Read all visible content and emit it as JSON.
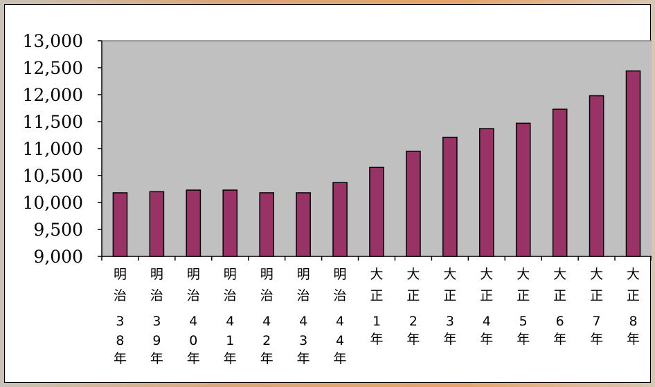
{
  "chart_data": {
    "type": "bar",
    "categories": [
      "明治38年",
      "明治39年",
      "明治40年",
      "明治41年",
      "明治42年",
      "明治43年",
      "明治44年",
      "大正1年",
      "大正2年",
      "大正3年",
      "大正4年",
      "大正5年",
      "大正6年",
      "大正7年",
      "大正8年"
    ],
    "category_lines": [
      [
        "明",
        "治",
        "3",
        "8",
        "年"
      ],
      [
        "明",
        "治",
        "3",
        "9",
        "年"
      ],
      [
        "明",
        "治",
        "4",
        "0",
        "年"
      ],
      [
        "明",
        "治",
        "4",
        "1",
        "年"
      ],
      [
        "明",
        "治",
        "4",
        "2",
        "年"
      ],
      [
        "明",
        "治",
        "4",
        "3",
        "年"
      ],
      [
        "明",
        "治",
        "4",
        "4",
        "年"
      ],
      [
        "大",
        "正",
        "1",
        "年"
      ],
      [
        "大",
        "正",
        "2",
        "年"
      ],
      [
        "大",
        "正",
        "3",
        "年"
      ],
      [
        "大",
        "正",
        "4",
        "年"
      ],
      [
        "大",
        "正",
        "5",
        "年"
      ],
      [
        "大",
        "正",
        "6",
        "年"
      ],
      [
        "大",
        "正",
        "7",
        "年"
      ],
      [
        "大",
        "正",
        "8",
        "年"
      ]
    ],
    "values": [
      10180,
      10200,
      10230,
      10230,
      10180,
      10180,
      10370,
      10650,
      10950,
      11210,
      11370,
      11470,
      11730,
      11980,
      12440
    ],
    "ylim": [
      9000,
      13000
    ],
    "yticks": [
      9000,
      9500,
      10000,
      10500,
      11000,
      11500,
      12000,
      12500,
      13000
    ],
    "ytick_labels": [
      "9,000",
      "9,500",
      "10,000",
      "10,500",
      "11,000",
      "11,500",
      "12,000",
      "12,500",
      "13,000"
    ],
    "grid": false,
    "legend": "none",
    "colors": {
      "bar": "#993366",
      "plot_background": "#c0c0c0",
      "frame": "#ffffff",
      "axis": "#000000"
    }
  }
}
